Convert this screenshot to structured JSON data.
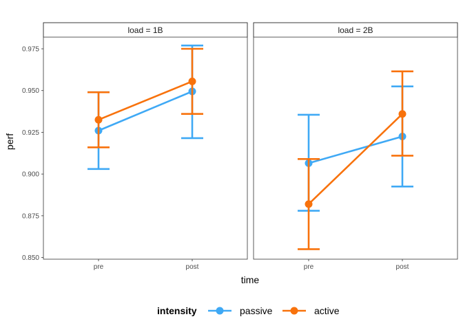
{
  "chart_data": {
    "type": "line",
    "ylabel": "perf",
    "xlabel": "time",
    "categories": [
      "pre",
      "post"
    ],
    "ylim": [
      0.849,
      0.982
    ],
    "yticks": [
      "0.850",
      "0.875",
      "0.900",
      "0.925",
      "0.950",
      "0.975"
    ],
    "legend": {
      "title": "intensity",
      "position": "bottom"
    },
    "grid": false,
    "panels": [
      {
        "title": "load = 1B",
        "series": [
          {
            "name": "passive",
            "color": "#3FA9F5",
            "values": [
              0.926,
              0.9495
            ],
            "lower": [
              0.903,
              0.9215
            ],
            "upper": [
              0.949,
              0.977
            ]
          },
          {
            "name": "active",
            "color": "#F8720C",
            "values": [
              0.9325,
              0.9555
            ],
            "lower": [
              0.916,
              0.936
            ],
            "upper": [
              0.949,
              0.975
            ]
          }
        ]
      },
      {
        "title": "load = 2B",
        "series": [
          {
            "name": "passive",
            "color": "#3FA9F5",
            "values": [
              0.9065,
              0.9225
            ],
            "lower": [
              0.878,
              0.8925
            ],
            "upper": [
              0.9355,
              0.9525
            ]
          },
          {
            "name": "active",
            "color": "#F8720C",
            "values": [
              0.882,
              0.936
            ],
            "lower": [
              0.855,
              0.911
            ],
            "upper": [
              0.909,
              0.9615
            ]
          }
        ]
      }
    ]
  }
}
